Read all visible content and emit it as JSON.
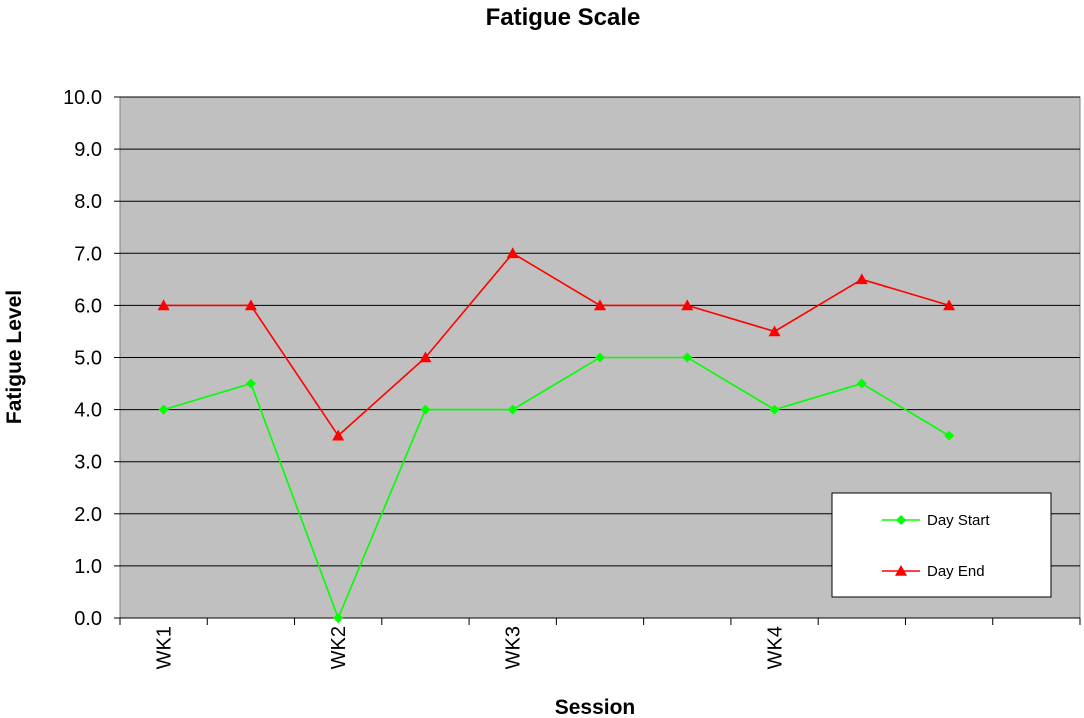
{
  "chart_data": {
    "type": "line",
    "title": "Fatigue Scale",
    "xlabel": "Session",
    "ylabel": "Fatigue Level",
    "ylim": [
      0,
      10
    ],
    "ytick_step": 1,
    "y_tick_labels": [
      "0.0",
      "1.0",
      "2.0",
      "3.0",
      "4.0",
      "5.0",
      "6.0",
      "7.0",
      "8.0",
      "9.0",
      "10.0"
    ],
    "grid": true,
    "plot_background": "#c0c0c0",
    "legend_position": "bottom-right",
    "category_count": 11,
    "x_tick_labels": [
      {
        "index": 0,
        "label": "WK1"
      },
      {
        "index": 2,
        "label": "WK2"
      },
      {
        "index": 4,
        "label": "WK3"
      },
      {
        "index": 7,
        "label": "WK4"
      }
    ],
    "series": [
      {
        "name": "Day Start",
        "color": "#00ff00",
        "marker": "diamond",
        "values": [
          4.0,
          4.5,
          0.0,
          4.0,
          4.0,
          5.0,
          5.0,
          4.0,
          4.5,
          3.5
        ]
      },
      {
        "name": "Day End",
        "color": "#ff0000",
        "marker": "triangle",
        "values": [
          6.0,
          6.0,
          3.5,
          5.0,
          7.0,
          6.0,
          6.0,
          5.5,
          6.5,
          6.0
        ]
      }
    ]
  }
}
